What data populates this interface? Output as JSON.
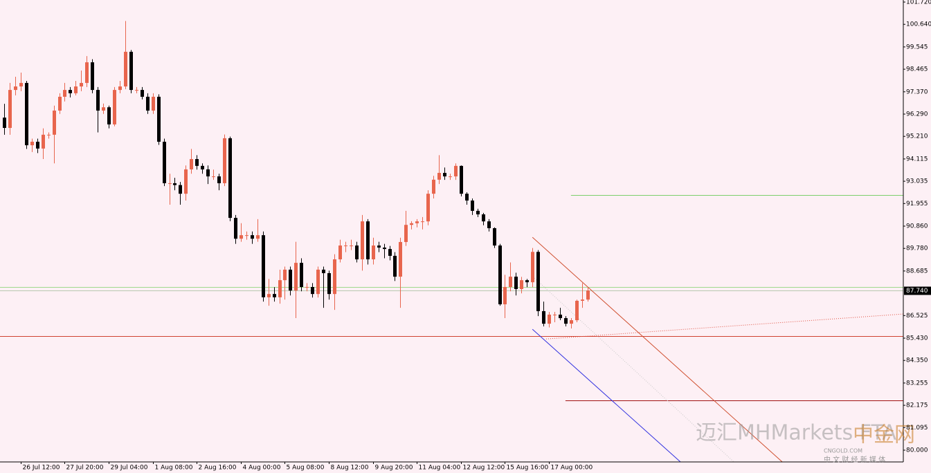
{
  "chart_data": {
    "type": "candlestick",
    "up_color": "#e8654d",
    "down_color": "#000000",
    "categories": [
      null,
      null,
      null,
      "26 Jul 12:00",
      null,
      null,
      null,
      null,
      null,
      null,
      null,
      "27 Jul 20:00",
      null,
      null,
      null,
      null,
      null,
      null,
      null,
      "29 Jul 04:00",
      null,
      null,
      null,
      null,
      null,
      null,
      null,
      "1 Aug 08:00",
      null,
      null,
      null,
      null,
      null,
      null,
      null,
      "2 Aug 16:00",
      null,
      null,
      null,
      null,
      null,
      null,
      null,
      "4 Aug 00:00",
      null,
      null,
      null,
      null,
      null,
      null,
      null,
      "5 Aug 08:00",
      null,
      null,
      null,
      null,
      null,
      null,
      null,
      "8 Aug 12:00",
      null,
      null,
      null,
      null,
      null,
      null,
      null,
      "9 Aug 20:00",
      null,
      null,
      null,
      null,
      null,
      null,
      null,
      "11 Aug 04:00",
      null,
      null,
      null,
      null,
      null,
      null,
      null,
      "12 Aug 12:00",
      null,
      null,
      null,
      null,
      null,
      null,
      null,
      "15 Aug 16:00",
      null,
      null,
      null,
      null,
      null,
      null,
      null,
      "17 Aug 00:00",
      null,
      null,
      null,
      null,
      null,
      null,
      null
    ],
    "open": [
      96.12,
      95.62,
      97.46,
      97.63,
      97.8,
      94.78,
      94.95,
      94.62,
      95.29,
      95.29,
      96.46,
      97.13,
      97.46,
      97.3,
      97.63,
      97.8,
      98.8,
      97.46,
      96.46,
      96.62,
      95.79,
      97.46,
      97.63,
      99.31,
      97.46,
      97.46,
      97.13,
      96.46,
      97.13,
      94.95,
      92.94,
      92.94,
      92.85,
      92.43,
      93.61,
      94.11,
      93.78,
      93.61,
      93.27,
      93.27,
      92.94,
      95.12,
      91.26,
      90.25,
      90.42,
      90.42,
      90.25,
      90.42,
      87.41,
      87.57,
      87.41,
      88.24,
      88.75,
      87.74,
      89.08,
      87.91,
      87.91,
      87.57,
      88.75,
      88.58,
      87.57,
      89.25,
      89.92,
      89.92,
      89.92,
      89.25,
      91.09,
      89.25,
      89.92,
      89.82,
      89.75,
      89.42,
      88.41,
      90.09,
      90.92,
      91.0,
      91.09,
      91.09,
      92.43,
      93.11,
      93.44,
      93.27,
      93.27,
      93.78,
      92.43,
      92.1,
      91.6,
      91.43,
      91.09,
      90.76,
      89.92,
      87.07,
      87.91,
      88.41,
      87.81,
      88.24,
      88.14,
      89.61,
      86.74,
      86.13,
      86.57,
      86.57,
      86.4,
      86.13,
      86.3,
      87.24,
      87.3
    ],
    "high": [
      96.79,
      97.8,
      98.1,
      98.3,
      97.9,
      95.1,
      95.1,
      95.6,
      95.4,
      96.7,
      97.3,
      97.8,
      97.6,
      97.9,
      98.4,
      99.1,
      98.95,
      97.6,
      96.8,
      96.7,
      97.6,
      97.9,
      100.8,
      99.4,
      97.6,
      97.6,
      97.3,
      97.3,
      97.25,
      95.1,
      93.4,
      93.2,
      93.0,
      93.8,
      94.6,
      94.3,
      93.9,
      93.8,
      93.6,
      93.4,
      95.3,
      95.2,
      91.4,
      91.0,
      90.6,
      90.6,
      91.2,
      90.6,
      88.3,
      87.9,
      88.75,
      88.9,
      88.9,
      90.1,
      89.3,
      88.1,
      88.1,
      88.9,
      88.9,
      88.7,
      89.5,
      90.2,
      90.1,
      90.2,
      90.1,
      91.4,
      91.2,
      90.3,
      90.1,
      90.0,
      89.9,
      89.6,
      90.3,
      91.6,
      91.1,
      91.2,
      91.3,
      92.6,
      93.3,
      94.3,
      93.7,
      93.4,
      93.9,
      93.8,
      92.5,
      92.2,
      91.7,
      91.5,
      91.2,
      90.8,
      90.0,
      88.5,
      89.1,
      88.6,
      88.4,
      88.3,
      89.8,
      89.7,
      87.2,
      86.7,
      86.7,
      86.9,
      86.5,
      86.4,
      87.3,
      88.1,
      87.9
    ],
    "low": [
      95.29,
      95.29,
      97.2,
      97.4,
      94.6,
      94.45,
      94.4,
      94.11,
      95.1,
      93.9,
      96.3,
      96.9,
      97.1,
      97.2,
      97.4,
      97.6,
      97.3,
      95.4,
      96.3,
      95.6,
      95.7,
      97.3,
      97.5,
      97.3,
      97.3,
      97.0,
      96.3,
      96.3,
      94.8,
      92.8,
      91.9,
      92.6,
      91.9,
      92.1,
      93.4,
      93.6,
      93.4,
      92.9,
      93.1,
      92.6,
      92.8,
      91.1,
      90.0,
      90.1,
      90.2,
      90.0,
      90.1,
      87.2,
      87.0,
      87.2,
      87.1,
      87.3,
      87.5,
      86.4,
      87.7,
      87.7,
      87.4,
      87.4,
      86.9,
      87.3,
      86.8,
      89.1,
      89.6,
      89.7,
      89.1,
      88.7,
      89.0,
      89.0,
      89.6,
      89.3,
      89.2,
      88.2,
      86.9,
      89.9,
      90.7,
      90.8,
      90.7,
      90.9,
      92.2,
      92.9,
      93.1,
      93.1,
      93.1,
      92.3,
      91.9,
      91.4,
      91.3,
      90.9,
      90.6,
      89.8,
      87.0,
      86.4,
      87.7,
      87.5,
      87.6,
      87.9,
      87.9,
      86.5,
      86.0,
      85.95,
      86.2,
      86.3,
      86.0,
      85.9,
      86.2,
      86.9,
      87.2
    ],
    "close": [
      95.62,
      97.46,
      97.63,
      97.8,
      94.78,
      94.95,
      94.62,
      95.29,
      95.29,
      96.46,
      97.13,
      97.46,
      97.3,
      97.63,
      97.8,
      98.8,
      97.46,
      96.46,
      96.62,
      95.79,
      97.46,
      97.63,
      99.31,
      97.46,
      97.46,
      97.13,
      96.46,
      97.13,
      94.95,
      92.94,
      92.94,
      92.85,
      92.43,
      93.61,
      94.11,
      93.78,
      93.61,
      93.27,
      93.27,
      92.94,
      95.12,
      91.26,
      90.25,
      90.42,
      90.42,
      90.25,
      90.42,
      87.41,
      87.57,
      87.41,
      88.24,
      88.75,
      87.74,
      89.08,
      87.91,
      87.91,
      87.57,
      88.75,
      88.58,
      87.57,
      89.25,
      89.92,
      89.92,
      89.92,
      89.25,
      91.09,
      89.25,
      89.92,
      89.82,
      89.75,
      89.42,
      88.41,
      90.09,
      90.92,
      91.0,
      91.09,
      91.09,
      92.43,
      93.11,
      93.44,
      93.27,
      93.27,
      93.78,
      92.43,
      92.1,
      91.6,
      91.43,
      91.09,
      90.76,
      89.92,
      87.07,
      87.91,
      88.41,
      87.81,
      88.24,
      88.14,
      89.61,
      86.74,
      86.13,
      86.57,
      86.57,
      86.4,
      86.13,
      86.3,
      87.24,
      87.3,
      87.74
    ],
    "ylim": [
      79.43,
      101.82
    ],
    "yticks": [
      {
        "value": 101.72,
        "label": "101.720"
      },
      {
        "value": 100.64,
        "label": "100.640"
      },
      {
        "value": 99.545,
        "label": "99.545"
      },
      {
        "value": 98.465,
        "label": "98.465"
      },
      {
        "value": 97.37,
        "label": "97.370"
      },
      {
        "value": 96.29,
        "label": "96.290"
      },
      {
        "value": 95.21,
        "label": "95.210"
      },
      {
        "value": 94.115,
        "label": "94.115"
      },
      {
        "value": 93.035,
        "label": "93.035"
      },
      {
        "value": 91.955,
        "label": "91.955"
      },
      {
        "value": 90.86,
        "label": "90.860"
      },
      {
        "value": 89.78,
        "label": "89.780"
      },
      {
        "value": 88.685,
        "label": "88.685"
      },
      {
        "value": 86.525,
        "label": "86.525"
      },
      {
        "value": 85.43,
        "label": "85.430"
      },
      {
        "value": 84.35,
        "label": "84.350"
      },
      {
        "value": 83.255,
        "label": "83.255"
      },
      {
        "value": 82.175,
        "label": "82.175"
      },
      {
        "value": 81.095,
        "label": "81.095"
      },
      {
        "value": 80.0,
        "label": "80.000"
      }
    ],
    "current_price": {
      "value": 87.74,
      "label": "87.740",
      "color": "#b8c8b0"
    },
    "hlines": [
      {
        "value": 92.37,
        "color": "#7ccf6a",
        "from_index": 103
      },
      {
        "value": 87.91,
        "color": "#9fd88c"
      },
      {
        "value": 85.53,
        "color": "#d04030"
      },
      {
        "value": 82.41,
        "color": "#a01010",
        "from_index": 102
      }
    ],
    "trendlines": [
      {
        "x": [
          96,
          141.4
        ],
        "y": [
          90.32,
          79.43
        ],
        "color": "#d05030"
      },
      {
        "x": [
          96,
          122.9
        ],
        "y": [
          85.86,
          79.43
        ],
        "color": "#3030e0"
      },
      {
        "x": [
          98.5,
          163.4
        ],
        "y": [
          85.39,
          86.6
        ],
        "color": "#e05040",
        "dash": true
      },
      {
        "x": [
          96.1,
          132.6
        ],
        "y": [
          88.41,
          79.43
        ],
        "color": "#c8c8c8",
        "dash": true
      }
    ],
    "watermark": [
      "迈汇MHMarkets FTA",
      "中金网",
      "CNGOLD.COM",
      "中 文 财 经 新 媒 体"
    ]
  }
}
